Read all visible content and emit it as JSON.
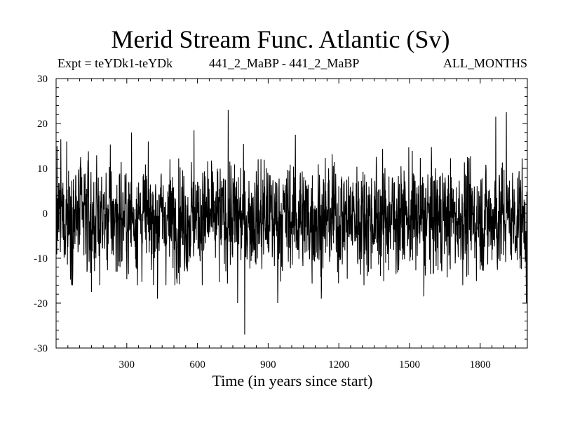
{
  "chart_data": {
    "type": "line",
    "title": "Merid Stream Func. Atlantic (Sv)",
    "subtitle_left": "Expt = teYDk1-teYDk",
    "subtitle_center": "441_2_MaBP - 441_2_MaBP",
    "subtitle_right": "ALL_MONTHS",
    "xlabel": "Time (in years since start)",
    "ylabel": "",
    "xlim": [
      0,
      2000
    ],
    "ylim": [
      -30,
      30
    ],
    "xticks": [
      300,
      600,
      900,
      1200,
      1500,
      1800
    ],
    "yticks": [
      -30,
      -20,
      -10,
      0,
      10,
      20,
      30
    ],
    "grid": false,
    "series": [
      {
        "name": "Merid Stream Func.",
        "color": "#000000",
        "n_points": 2000,
        "approx_mean": -1,
        "approx_std": 6,
        "extremes": [
          {
            "x": 20,
            "y": 16.5
          },
          {
            "x": 45,
            "y": 16
          },
          {
            "x": 150,
            "y": -17.5
          },
          {
            "x": 320,
            "y": 18
          },
          {
            "x": 430,
            "y": -19
          },
          {
            "x": 585,
            "y": 18.5
          },
          {
            "x": 730,
            "y": 23
          },
          {
            "x": 770,
            "y": -20
          },
          {
            "x": 800,
            "y": -27
          },
          {
            "x": 940,
            "y": -20
          },
          {
            "x": 1015,
            "y": 17.5
          },
          {
            "x": 1125,
            "y": -19
          },
          {
            "x": 1560,
            "y": -18.5
          },
          {
            "x": 1865,
            "y": 21.5
          },
          {
            "x": 1910,
            "y": 22.5
          },
          {
            "x": 1995,
            "y": -20
          }
        ]
      }
    ]
  }
}
